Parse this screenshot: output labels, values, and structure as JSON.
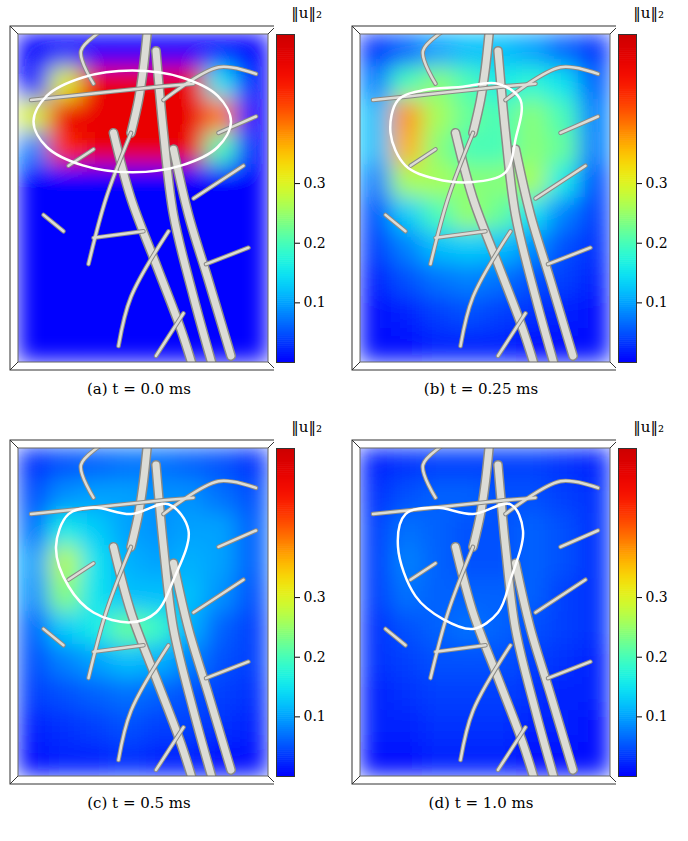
{
  "chart_data": [
    {
      "type": "heatmap",
      "caption": "(a) t = 0.0 ms",
      "colorbar": {
        "label": "‖u‖₂",
        "range": [
          0,
          0.55
        ],
        "ticks": [
          0.1,
          0.2,
          0.3
        ]
      },
      "cells": [
        [
          0,
          0,
          0,
          0,
          0,
          0,
          0,
          0
        ],
        [
          0,
          0.3,
          0.5,
          0.5,
          0.5,
          0.5,
          0.15,
          0
        ],
        [
          0.3,
          0.5,
          0.5,
          0.5,
          0.5,
          0.5,
          0.4,
          0
        ],
        [
          0.08,
          0.45,
          0.5,
          0.5,
          0.5,
          0.5,
          0.2,
          0
        ],
        [
          0,
          0,
          0,
          0,
          0,
          0,
          0,
          0
        ],
        [
          0,
          0,
          0,
          0,
          0,
          0,
          0,
          0
        ],
        [
          0,
          0,
          0,
          0,
          0,
          0,
          0,
          0
        ],
        [
          0,
          0,
          0,
          0,
          0,
          0,
          0,
          0
        ],
        [
          0,
          0,
          0,
          0,
          0,
          0,
          0,
          0
        ],
        [
          0,
          0,
          0,
          0,
          0,
          0,
          0,
          0
        ]
      ],
      "interface": [
        [
          0.85,
          0.265
        ],
        [
          0.797,
          0.343
        ],
        [
          0.653,
          0.399
        ],
        [
          0.455,
          0.42
        ],
        [
          0.257,
          0.399
        ],
        [
          0.113,
          0.343
        ],
        [
          0.06,
          0.265
        ],
        [
          0.113,
          0.187
        ],
        [
          0.257,
          0.131
        ],
        [
          0.455,
          0.11
        ],
        [
          0.653,
          0.131
        ],
        [
          0.797,
          0.187
        ]
      ]
    },
    {
      "type": "heatmap",
      "caption": "(b) t = 0.25 ms",
      "colorbar": {
        "label": "‖u‖₂",
        "range": [
          0,
          0.55
        ],
        "ticks": [
          0.1,
          0.2,
          0.3
        ]
      },
      "cells": [
        [
          0.03,
          0.06,
          0.1,
          0.12,
          0.12,
          0.1,
          0.06,
          0.03
        ],
        [
          0.08,
          0.2,
          0.24,
          0.2,
          0.16,
          0.18,
          0.15,
          0.06
        ],
        [
          0.12,
          0.38,
          0.26,
          0.22,
          0.2,
          0.24,
          0.2,
          0.08
        ],
        [
          0.12,
          0.36,
          0.24,
          0.2,
          0.2,
          0.24,
          0.22,
          0.08
        ],
        [
          0.08,
          0.26,
          0.26,
          0.24,
          0.24,
          0.26,
          0.16,
          0.05
        ],
        [
          0.05,
          0.13,
          0.2,
          0.25,
          0.22,
          0.15,
          0.08,
          0.04
        ],
        [
          0.04,
          0.08,
          0.12,
          0.13,
          0.12,
          0.09,
          0.05,
          0.03
        ],
        [
          0.02,
          0.05,
          0.07,
          0.08,
          0.07,
          0.05,
          0.04,
          0.02
        ],
        [
          0.01,
          0.02,
          0.04,
          0.05,
          0.04,
          0.03,
          0.02,
          0.01
        ],
        [
          0.01,
          0.01,
          0.02,
          0.02,
          0.02,
          0.01,
          0.01,
          0.01
        ]
      ],
      "interface": [
        [
          0.12,
          0.3
        ],
        [
          0.15,
          0.2
        ],
        [
          0.25,
          0.17
        ],
        [
          0.4,
          0.16
        ],
        [
          0.55,
          0.15
        ],
        [
          0.64,
          0.2
        ],
        [
          0.62,
          0.32
        ],
        [
          0.58,
          0.42
        ],
        [
          0.45,
          0.45
        ],
        [
          0.3,
          0.44
        ],
        [
          0.18,
          0.4
        ]
      ]
    },
    {
      "type": "heatmap",
      "caption": "(c) t = 0.5 ms",
      "colorbar": {
        "label": "‖u‖₂",
        "range": [
          0,
          0.55
        ],
        "ticks": [
          0.1,
          0.2,
          0.3
        ]
      },
      "cells": [
        [
          0.03,
          0.05,
          0.06,
          0.07,
          0.07,
          0.06,
          0.05,
          0.03
        ],
        [
          0.05,
          0.09,
          0.1,
          0.1,
          0.09,
          0.09,
          0.07,
          0.05
        ],
        [
          0.07,
          0.16,
          0.13,
          0.1,
          0.09,
          0.1,
          0.1,
          0.06
        ],
        [
          0.1,
          0.27,
          0.15,
          0.11,
          0.1,
          0.11,
          0.1,
          0.06
        ],
        [
          0.09,
          0.24,
          0.15,
          0.12,
          0.12,
          0.12,
          0.09,
          0.05
        ],
        [
          0.06,
          0.13,
          0.16,
          0.22,
          0.19,
          0.11,
          0.06,
          0.04
        ],
        [
          0.05,
          0.08,
          0.1,
          0.12,
          0.11,
          0.08,
          0.05,
          0.04
        ],
        [
          0.04,
          0.05,
          0.06,
          0.07,
          0.06,
          0.05,
          0.04,
          0.03
        ],
        [
          0.02,
          0.03,
          0.04,
          0.05,
          0.04,
          0.04,
          0.03,
          0.02
        ],
        [
          0.01,
          0.02,
          0.02,
          0.03,
          0.02,
          0.02,
          0.01,
          0.01
        ]
      ],
      "interface": [
        [
          0.15,
          0.3
        ],
        [
          0.2,
          0.2
        ],
        [
          0.3,
          0.18
        ],
        [
          0.45,
          0.2
        ],
        [
          0.6,
          0.17
        ],
        [
          0.68,
          0.25
        ],
        [
          0.62,
          0.4
        ],
        [
          0.55,
          0.5
        ],
        [
          0.45,
          0.53
        ],
        [
          0.3,
          0.5
        ],
        [
          0.2,
          0.42
        ]
      ]
    },
    {
      "type": "heatmap",
      "caption": "(d) t = 1.0 ms",
      "colorbar": {
        "label": "‖u‖₂",
        "range": [
          0,
          0.55
        ],
        "ticks": [
          0.1,
          0.2,
          0.3
        ]
      },
      "cells": [
        [
          0.02,
          0.03,
          0.04,
          0.04,
          0.04,
          0.04,
          0.03,
          0.02
        ],
        [
          0.03,
          0.05,
          0.06,
          0.06,
          0.05,
          0.05,
          0.04,
          0.03
        ],
        [
          0.04,
          0.07,
          0.06,
          0.05,
          0.05,
          0.06,
          0.05,
          0.03
        ],
        [
          0.04,
          0.08,
          0.06,
          0.05,
          0.05,
          0.06,
          0.05,
          0.03
        ],
        [
          0.04,
          0.07,
          0.06,
          0.06,
          0.06,
          0.06,
          0.04,
          0.03
        ],
        [
          0.03,
          0.05,
          0.06,
          0.07,
          0.06,
          0.05,
          0.04,
          0.03
        ],
        [
          0.03,
          0.04,
          0.05,
          0.05,
          0.05,
          0.04,
          0.03,
          0.02
        ],
        [
          0.02,
          0.03,
          0.04,
          0.04,
          0.04,
          0.03,
          0.02,
          0.02
        ],
        [
          0.02,
          0.02,
          0.03,
          0.03,
          0.03,
          0.02,
          0.02,
          0.01
        ],
        [
          0.01,
          0.01,
          0.02,
          0.02,
          0.02,
          0.01,
          0.01,
          0.01
        ]
      ],
      "interface": [
        [
          0.15,
          0.3
        ],
        [
          0.18,
          0.2
        ],
        [
          0.3,
          0.18
        ],
        [
          0.45,
          0.2
        ],
        [
          0.6,
          0.17
        ],
        [
          0.65,
          0.25
        ],
        [
          0.6,
          0.4
        ],
        [
          0.55,
          0.5
        ],
        [
          0.45,
          0.55
        ],
        [
          0.33,
          0.52
        ],
        [
          0.22,
          0.45
        ]
      ]
    }
  ]
}
